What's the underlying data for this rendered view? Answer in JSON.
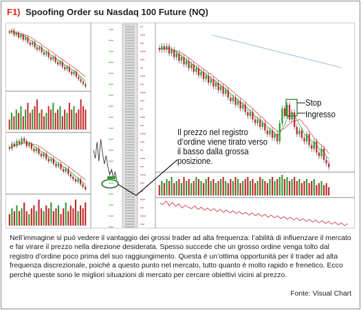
{
  "figure": {
    "number": "F1)",
    "title": "Spoofing Order su Nasdaq 100 Future (NQ)"
  },
  "annotations": {
    "main": [
      "Il prezzo nel registro",
      "d’ordine viene tirato verso",
      "il basso dalla grossa",
      "posizione."
    ],
    "stop": "Stop",
    "ingresso": "Ingresso"
  },
  "caption": "Nell’immagine si può vedere il vantaggio dei grossi trader ad alta frequenza: l’abilità di influenzare il mercato e far virare il prezzo nella direzione desiderata. Spesso succede che un grosso ordine venga tolto dal registro d’ordine poco prima del suo raggiungimento. Questa è un’ottima opportunità per il trader ad alta frequenza discrezionale, poiché a questo punto nel mercato, tutto quanto è molto rapido e frenetico. Ecco perché queste sono le migliori situazioni di mercato per cercare obiettivi vicini al prezzo.",
  "source": "Fonte: Visual Chart",
  "colors": {
    "accent": "#d6251c",
    "bull": "#2e9a2e",
    "bear": "#c0282b",
    "ma_green": "#3bb34a",
    "ma_red": "#e25a55",
    "ma_blue": "#7fb6df",
    "panel_bg": "#ffffff",
    "dom_bg": "#e9e9e9"
  },
  "chart_data": [
    {
      "type": "candlestick",
      "panel": "upper-left",
      "close": [
        100,
        101,
        99,
        100,
        98,
        99,
        97,
        98,
        96,
        95,
        96,
        94,
        93,
        94,
        92,
        91,
        92,
        90,
        89,
        90,
        88,
        87,
        88,
        86,
        85,
        86,
        84,
        83,
        84,
        82,
        81,
        80,
        79,
        78
      ],
      "volume": [
        3,
        5,
        4,
        6,
        5,
        7,
        4,
        6,
        8,
        5,
        6,
        7,
        9,
        5,
        6,
        4,
        5,
        7,
        6,
        8,
        5,
        6,
        7,
        4,
        6,
        5,
        8,
        6,
        7,
        5,
        6,
        9,
        7,
        6
      ]
    },
    {
      "type": "candlestick",
      "panel": "middle-left",
      "close": [
        100,
        102,
        101,
        103,
        102,
        104,
        103,
        101,
        102,
        100,
        99,
        100,
        98,
        97,
        98,
        96,
        95,
        96,
        94,
        93,
        94,
        92,
        91,
        92,
        90,
        89,
        88,
        87,
        88,
        86,
        85,
        84
      ],
      "volume": [
        4,
        6,
        5,
        7,
        5,
        6,
        8,
        5,
        4,
        6,
        7,
        5,
        9,
        6,
        5,
        7,
        6,
        8,
        5,
        6,
        7,
        4,
        6,
        8,
        5,
        7,
        6,
        9,
        5,
        7,
        6,
        8
      ]
    },
    {
      "type": "line",
      "panel": "middle-tick",
      "values": [
        100,
        97,
        103,
        96,
        104,
        99,
        95,
        98,
        94,
        91,
        93,
        90,
        92,
        89
      ]
    },
    {
      "type": "candlestick",
      "panel": "main-right",
      "close": [
        100,
        101,
        100,
        101,
        99,
        100,
        98,
        99,
        97,
        98,
        96,
        97,
        95,
        96,
        94,
        95,
        93,
        94,
        92,
        93,
        91,
        92,
        90,
        91,
        89,
        90,
        88,
        89,
        87,
        86,
        87,
        85,
        86,
        84,
        85,
        83,
        82,
        83,
        81,
        80,
        81,
        79,
        80,
        78,
        77,
        78,
        76,
        77,
        75,
        80,
        84,
        82,
        85,
        81,
        83,
        79,
        77,
        78,
        76,
        75,
        77,
        74,
        73,
        75,
        72,
        71,
        73,
        70,
        69,
        68
      ],
      "volume": [
        5,
        7,
        6,
        8,
        7,
        9,
        6,
        7,
        8,
        6,
        9,
        7,
        8,
        6,
        7,
        9,
        8,
        7,
        6,
        8,
        9,
        7,
        8,
        6,
        7,
        8,
        9,
        7,
        6,
        8,
        7,
        9,
        8,
        6,
        7,
        8,
        9,
        7,
        8,
        6,
        7,
        9,
        8,
        7,
        6,
        8,
        9,
        7,
        8,
        9,
        10,
        8,
        9,
        7,
        8,
        9,
        7,
        8,
        6,
        7,
        8,
        6,
        7,
        8,
        5,
        6,
        7,
        5,
        6,
        4
      ],
      "indicator": [
        52,
        50,
        55,
        48,
        53,
        47,
        51,
        45,
        49,
        46,
        44,
        48,
        43,
        46,
        42,
        45,
        41,
        44,
        40,
        43,
        39,
        42,
        38,
        41,
        37,
        40,
        36,
        39,
        35,
        38,
        34,
        37,
        33,
        36,
        32,
        35,
        31,
        34,
        30,
        33,
        29,
        32,
        28,
        31,
        27,
        30,
        26,
        29,
        25,
        28,
        24,
        27,
        23,
        26,
        22,
        25,
        21,
        24,
        20,
        23
      ]
    }
  ]
}
